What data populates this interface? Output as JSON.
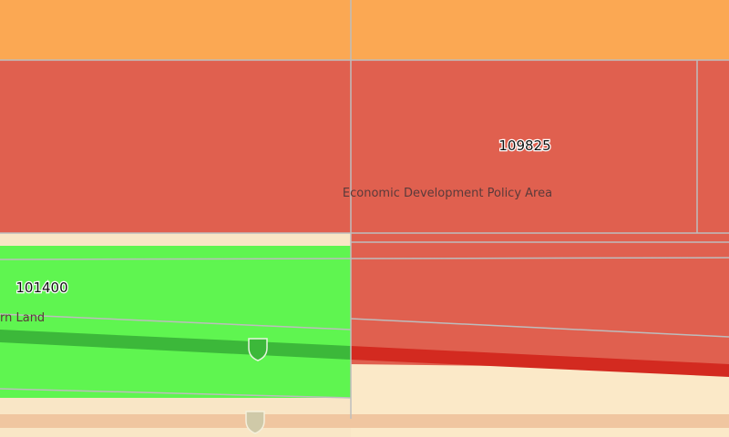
{
  "parcels": [
    {
      "id": "109825",
      "zone": "Economic Development Policy Area"
    },
    {
      "id": "101400",
      "zone": "rn Land"
    }
  ]
}
